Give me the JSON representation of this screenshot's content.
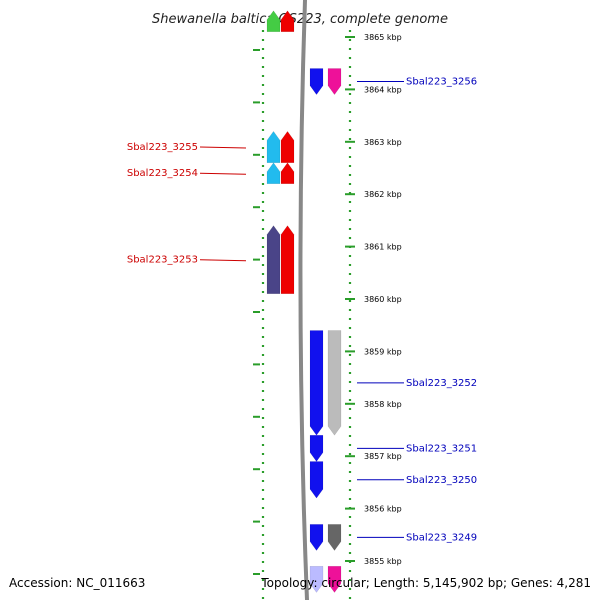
{
  "title": "Shewanella baltica OS223, complete genome",
  "footer": {
    "accession": "Accession: NC_011663",
    "summary": "Topology: circular; Length: 5,145,902 bp; Genes: 4,281"
  },
  "colors": {
    "tick_green": "#2a9d2a",
    "backbone": "#888888",
    "left_label": "#cc0000",
    "right_label": "#0000bb"
  },
  "scale": {
    "unit": "kbp",
    "ticks": [
      {
        "kbp": 3865,
        "label": "3865 kbp"
      },
      {
        "kbp": 3864,
        "label": "3864 kbp"
      },
      {
        "kbp": 3863,
        "label": "3863 kbp"
      },
      {
        "kbp": 3862,
        "label": "3862 kbp"
      },
      {
        "kbp": 3861,
        "label": "3861 kbp"
      },
      {
        "kbp": 3860,
        "label": "3860 kbp"
      },
      {
        "kbp": 3859,
        "label": "3859 kbp"
      },
      {
        "kbp": 3858,
        "label": "3858 kbp"
      },
      {
        "kbp": 3857,
        "label": "3857 kbp"
      },
      {
        "kbp": 3856,
        "label": "3856 kbp"
      },
      {
        "kbp": 3855,
        "label": "3855 kbp"
      }
    ]
  },
  "genes_left": [
    {
      "name": "",
      "start_kbp": 3865.1,
      "end_kbp": 3865.5,
      "colors": [
        "#44cc44",
        "#ee0000"
      ]
    },
    {
      "name": "Sbal223_3255",
      "start_kbp": 3862.6,
      "end_kbp": 3863.2,
      "colors": [
        "#22bbee",
        "#ee0000"
      ]
    },
    {
      "name": "Sbal223_3254",
      "start_kbp": 3862.2,
      "end_kbp": 3862.6,
      "colors": [
        "#22bbee",
        "#ee0000"
      ]
    },
    {
      "name": "Sbal223_3253",
      "start_kbp": 3860.1,
      "end_kbp": 3861.4,
      "colors": [
        "#4a4488",
        "#ee0000"
      ]
    }
  ],
  "genes_right": [
    {
      "name": "Sbal223_3256",
      "start_kbp": 3863.9,
      "end_kbp": 3864.4,
      "colors": [
        "#1111ee",
        "#ee1199"
      ]
    },
    {
      "name": "Sbal223_3252",
      "start_kbp": 3857.4,
      "end_kbp": 3859.4,
      "colors": [
        "#1111ee",
        "#bbbbbb"
      ]
    },
    {
      "name": "Sbal223_3251",
      "start_kbp": 3856.9,
      "end_kbp": 3857.4,
      "colors": [
        "#1111ee",
        null
      ]
    },
    {
      "name": "Sbal223_3250",
      "start_kbp": 3856.2,
      "end_kbp": 3856.9,
      "colors": [
        "#1111ee",
        null
      ]
    },
    {
      "name": "Sbal223_3249",
      "start_kbp": 3855.2,
      "end_kbp": 3855.7,
      "colors": [
        "#1111ee",
        "#666666"
      ]
    },
    {
      "name": "",
      "start_kbp": 3854.4,
      "end_kbp": 3854.9,
      "colors": [
        "#bbbbff",
        "#ee1199"
      ]
    }
  ]
}
